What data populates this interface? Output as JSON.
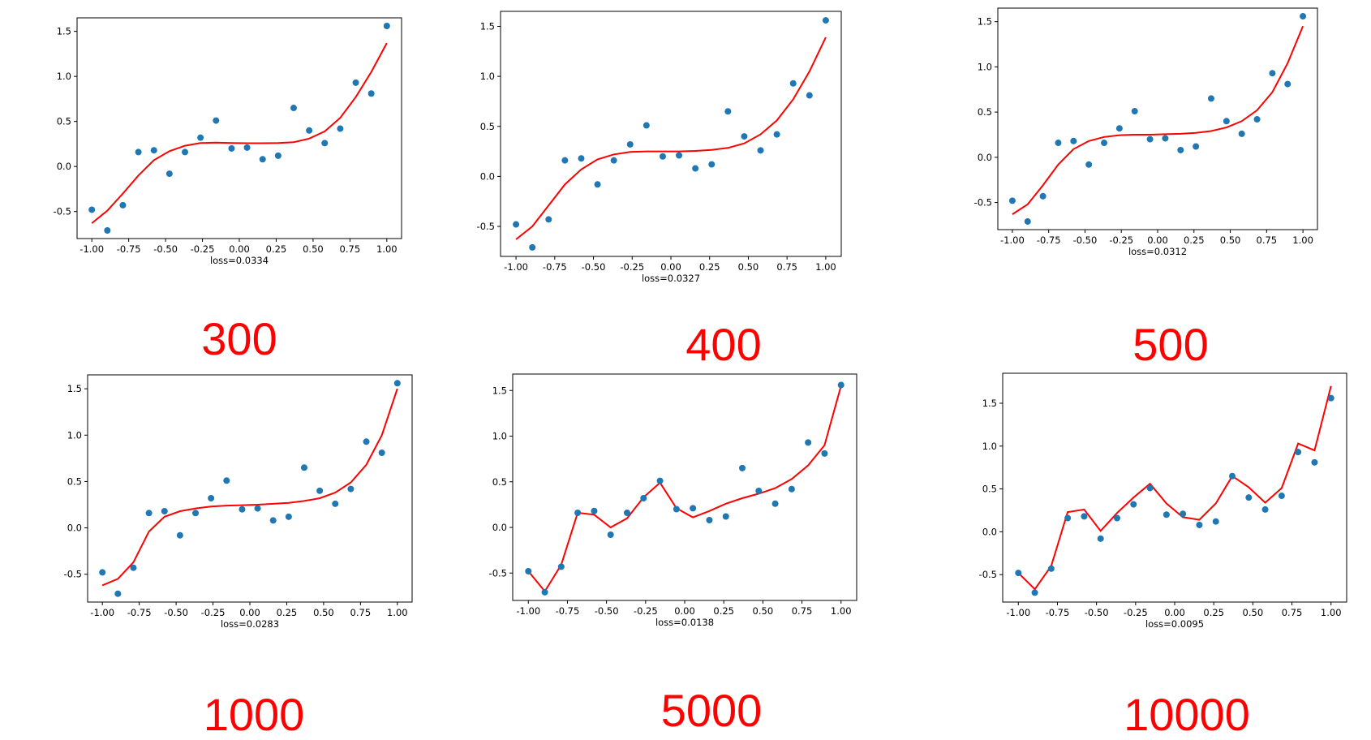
{
  "scatter_x": [
    -1.0,
    -0.8947,
    -0.7895,
    -0.6842,
    -0.5789,
    -0.4737,
    -0.3684,
    -0.2632,
    -0.1579,
    -0.0526,
    0.0526,
    0.1579,
    0.2632,
    0.3684,
    0.4737,
    0.5789,
    0.6842,
    0.7895,
    0.8947,
    1.0
  ],
  "scatter_y": [
    -0.48,
    -0.71,
    -0.43,
    0.16,
    0.18,
    -0.08,
    0.16,
    0.32,
    0.51,
    0.2,
    0.21,
    0.08,
    0.12,
    0.65,
    0.4,
    0.26,
    0.42,
    0.93,
    0.81,
    1.56
  ],
  "colors": {
    "points": "#1f77b4",
    "line": "#ff0000",
    "label": "#ff0000"
  },
  "chart_data": [
    {
      "type": "scatter+line",
      "panel_label": "300",
      "xlabel": "loss=0.0334",
      "xlim": [
        -1.1,
        1.1
      ],
      "ylim": [
        -0.8,
        1.65
      ],
      "xticks": [
        "-1.00",
        "-0.75",
        "-0.50",
        "-0.25",
        "0.00",
        "0.25",
        "0.50",
        "0.75",
        "1.00"
      ],
      "yticks": [
        "-0.5",
        "0.0",
        "0.5",
        "1.0",
        "1.5"
      ],
      "line_y": [
        -0.63,
        -0.49,
        -0.3,
        -0.1,
        0.07,
        0.17,
        0.23,
        0.26,
        0.265,
        0.26,
        0.258,
        0.258,
        0.26,
        0.27,
        0.31,
        0.39,
        0.54,
        0.77,
        1.05,
        1.37
      ]
    },
    {
      "type": "scatter+line",
      "panel_label": "400",
      "xlabel": "loss=0.0327",
      "xlim": [
        -1.1,
        1.1
      ],
      "ylim": [
        -0.8,
        1.65
      ],
      "xticks": [
        "-1.00",
        "-0.75",
        "-0.50",
        "-0.25",
        "0.00",
        "0.25",
        "0.50",
        "0.75",
        "1.00"
      ],
      "yticks": [
        "-0.5",
        "0.0",
        "0.5",
        "1.0",
        "1.5"
      ],
      "line_y": [
        -0.63,
        -0.5,
        -0.29,
        -0.08,
        0.07,
        0.17,
        0.22,
        0.245,
        0.25,
        0.25,
        0.25,
        0.255,
        0.265,
        0.285,
        0.33,
        0.42,
        0.56,
        0.77,
        1.05,
        1.39
      ]
    },
    {
      "type": "scatter+line",
      "panel_label": "500",
      "xlabel": "loss=0.0312",
      "xlim": [
        -1.1,
        1.1
      ],
      "ylim": [
        -0.8,
        1.65
      ],
      "xticks": [
        "-1.00",
        "-0.75",
        "-0.50",
        "-0.25",
        "0.00",
        "0.25",
        "0.50",
        "0.75",
        "1.00"
      ],
      "yticks": [
        "-0.5",
        "0.0",
        "0.5",
        "1.0",
        "1.5"
      ],
      "line_y": [
        -0.63,
        -0.52,
        -0.31,
        -0.08,
        0.09,
        0.18,
        0.225,
        0.245,
        0.25,
        0.25,
        0.255,
        0.26,
        0.27,
        0.29,
        0.33,
        0.4,
        0.52,
        0.72,
        1.04,
        1.45
      ]
    },
    {
      "type": "scatter+line",
      "panel_label": "1000",
      "xlabel": "loss=0.0283",
      "xlim": [
        -1.1,
        1.1
      ],
      "ylim": [
        -0.8,
        1.65
      ],
      "xticks": [
        "-1.00",
        "-0.75",
        "-0.50",
        "-0.25",
        "0.00",
        "0.25",
        "0.50",
        "0.75",
        "1.00"
      ],
      "yticks": [
        "-0.5",
        "0.0",
        "0.5",
        "1.0",
        "1.5"
      ],
      "line_y": [
        -0.62,
        -0.55,
        -0.37,
        -0.04,
        0.12,
        0.18,
        0.21,
        0.23,
        0.24,
        0.245,
        0.25,
        0.26,
        0.27,
        0.29,
        0.32,
        0.38,
        0.49,
        0.68,
        1.0,
        1.5
      ]
    },
    {
      "type": "scatter+line",
      "panel_label": "5000",
      "xlabel": "loss=0.0138",
      "xlim": [
        -1.1,
        1.1
      ],
      "ylim": [
        -0.8,
        1.68
      ],
      "xticks": [
        "-1.00",
        "-0.75",
        "-0.50",
        "-0.25",
        "0.00",
        "0.25",
        "0.50",
        "0.75",
        "1.00"
      ],
      "yticks": [
        "-0.5",
        "0.0",
        "0.5",
        "1.0",
        "1.5"
      ],
      "line_y": [
        -0.48,
        -0.7,
        -0.41,
        0.16,
        0.14,
        0.0,
        0.1,
        0.33,
        0.49,
        0.21,
        0.11,
        0.18,
        0.26,
        0.32,
        0.37,
        0.43,
        0.53,
        0.68,
        0.9,
        1.55
      ]
    },
    {
      "type": "scatter+line",
      "panel_label": "10000",
      "xlabel": "loss=0.0095",
      "xlim": [
        -1.1,
        1.1
      ],
      "ylim": [
        -0.82,
        1.85
      ],
      "xticks": [
        "-1.00",
        "-0.75",
        "-0.50",
        "-0.25",
        "0.00",
        "0.25",
        "0.50",
        "0.75",
        "1.00"
      ],
      "yticks": [
        "-0.5",
        "0.0",
        "0.5",
        "1.0",
        "1.5"
      ],
      "line_y": [
        -0.48,
        -0.67,
        -0.4,
        0.23,
        0.26,
        0.01,
        0.22,
        0.4,
        0.56,
        0.33,
        0.17,
        0.14,
        0.33,
        0.65,
        0.52,
        0.34,
        0.51,
        1.03,
        0.95,
        1.7
      ]
    }
  ]
}
